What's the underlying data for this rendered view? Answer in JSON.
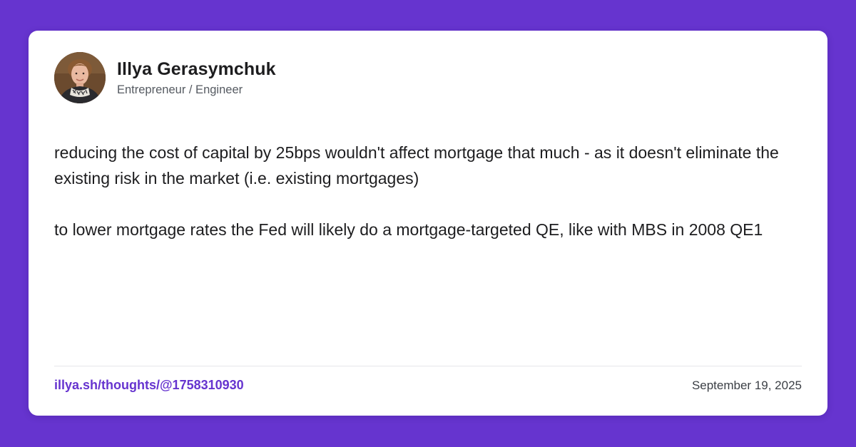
{
  "author": {
    "name": "Illya Gerasymchuk",
    "role": "Entrepreneur / Engineer",
    "avatar": "avatar-photo"
  },
  "post": {
    "paragraphs": [
      "reducing the cost of capital by 25bps wouldn't affect mortgage that much - as it doesn't eliminate the existing risk in the market (i.e. existing mortgages)",
      "to lower mortgage rates the Fed will likely do a mortgage-targeted QE, like with MBS in 2008 QE1"
    ]
  },
  "footer": {
    "permalink": "illya.sh/thoughts/@1758310930",
    "date": "September 19, 2025"
  },
  "colors": {
    "background": "#6634cf",
    "card": "#ffffff",
    "accent": "#6634cf",
    "text": "#1d1d1f"
  }
}
